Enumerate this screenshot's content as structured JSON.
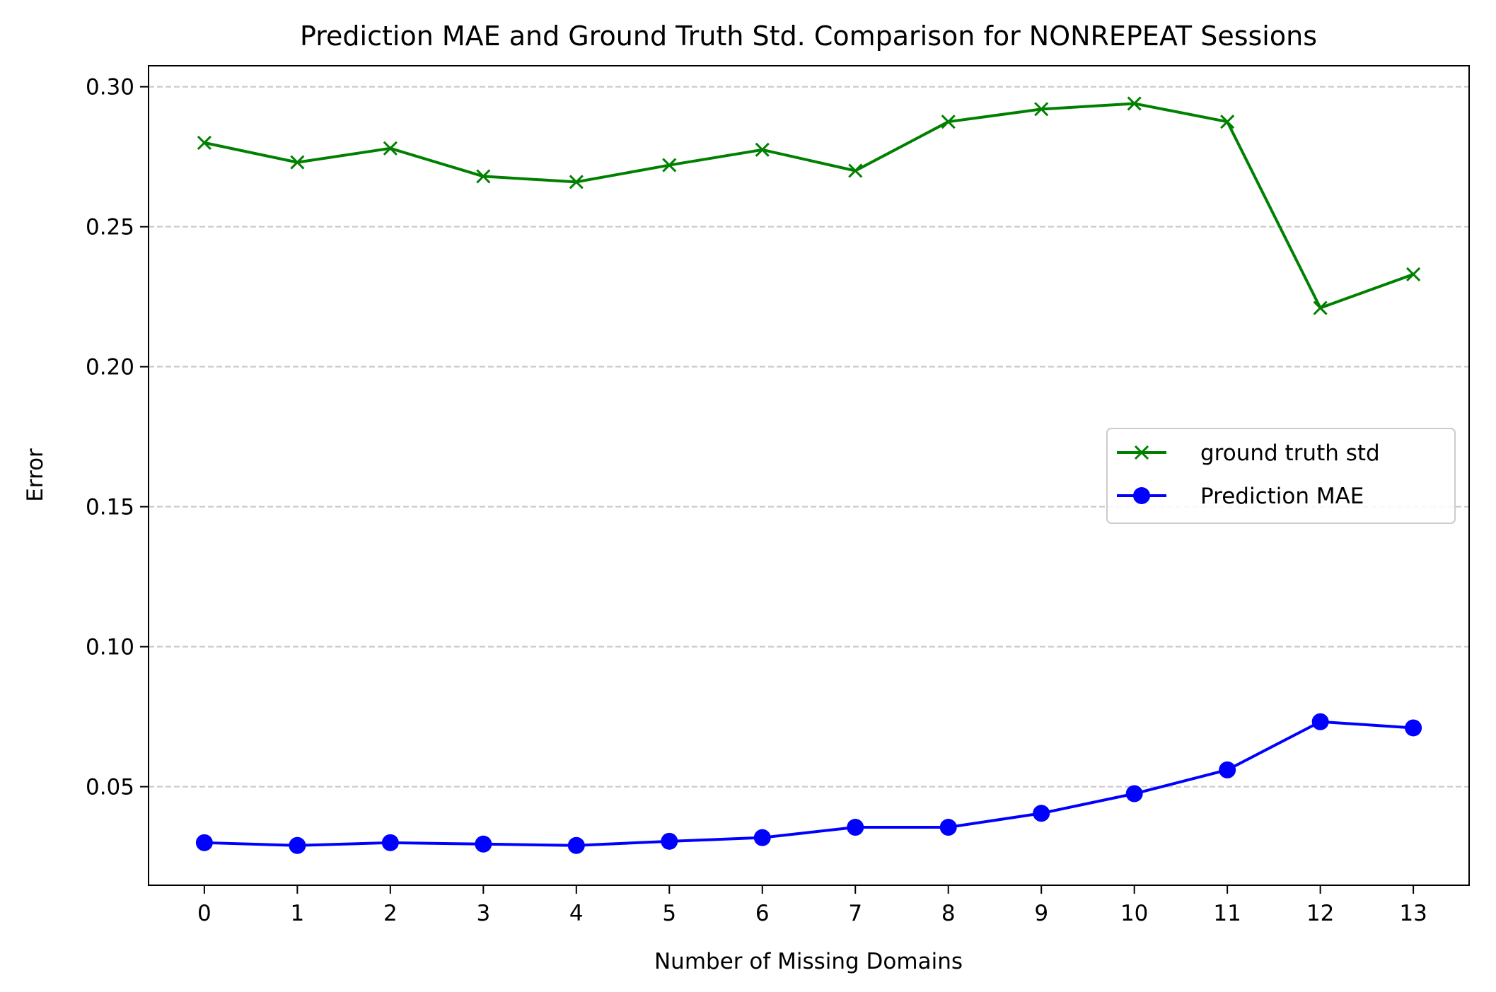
{
  "chart_data": {
    "type": "line",
    "title": "Prediction MAE and Ground Truth Std. Comparison for NONREPEAT Sessions",
    "xlabel": "Number of Missing Domains",
    "ylabel": "Error",
    "x": [
      0,
      1,
      2,
      3,
      4,
      5,
      6,
      7,
      8,
      9,
      10,
      11,
      12,
      13
    ],
    "xticks": [
      "0",
      "1",
      "2",
      "3",
      "4",
      "5",
      "6",
      "7",
      "8",
      "9",
      "10",
      "11",
      "12",
      "13"
    ],
    "yticks": [
      "0.05",
      "0.10",
      "0.15",
      "0.20",
      "0.25",
      "0.30"
    ],
    "ytick_values": [
      0.05,
      0.1,
      0.15,
      0.2,
      0.25,
      0.3
    ],
    "xlim": [
      -0.6,
      13.6
    ],
    "ylim": [
      0.0148,
      0.3075
    ],
    "grid": "y dashed",
    "legend_position": "center-right",
    "series": [
      {
        "name": "ground truth std",
        "color": "#008000",
        "marker": "x",
        "values": [
          0.28,
          0.273,
          0.278,
          0.268,
          0.266,
          0.272,
          0.2775,
          0.27,
          0.2875,
          0.292,
          0.294,
          0.2875,
          0.221,
          0.233
        ]
      },
      {
        "name": "Prediction MAE",
        "color": "#0000ff",
        "marker": "o",
        "values": [
          0.03,
          0.029,
          0.03,
          0.0295,
          0.029,
          0.0305,
          0.0318,
          0.0355,
          0.0355,
          0.0405,
          0.0475,
          0.056,
          0.0732,
          0.071
        ]
      }
    ]
  }
}
